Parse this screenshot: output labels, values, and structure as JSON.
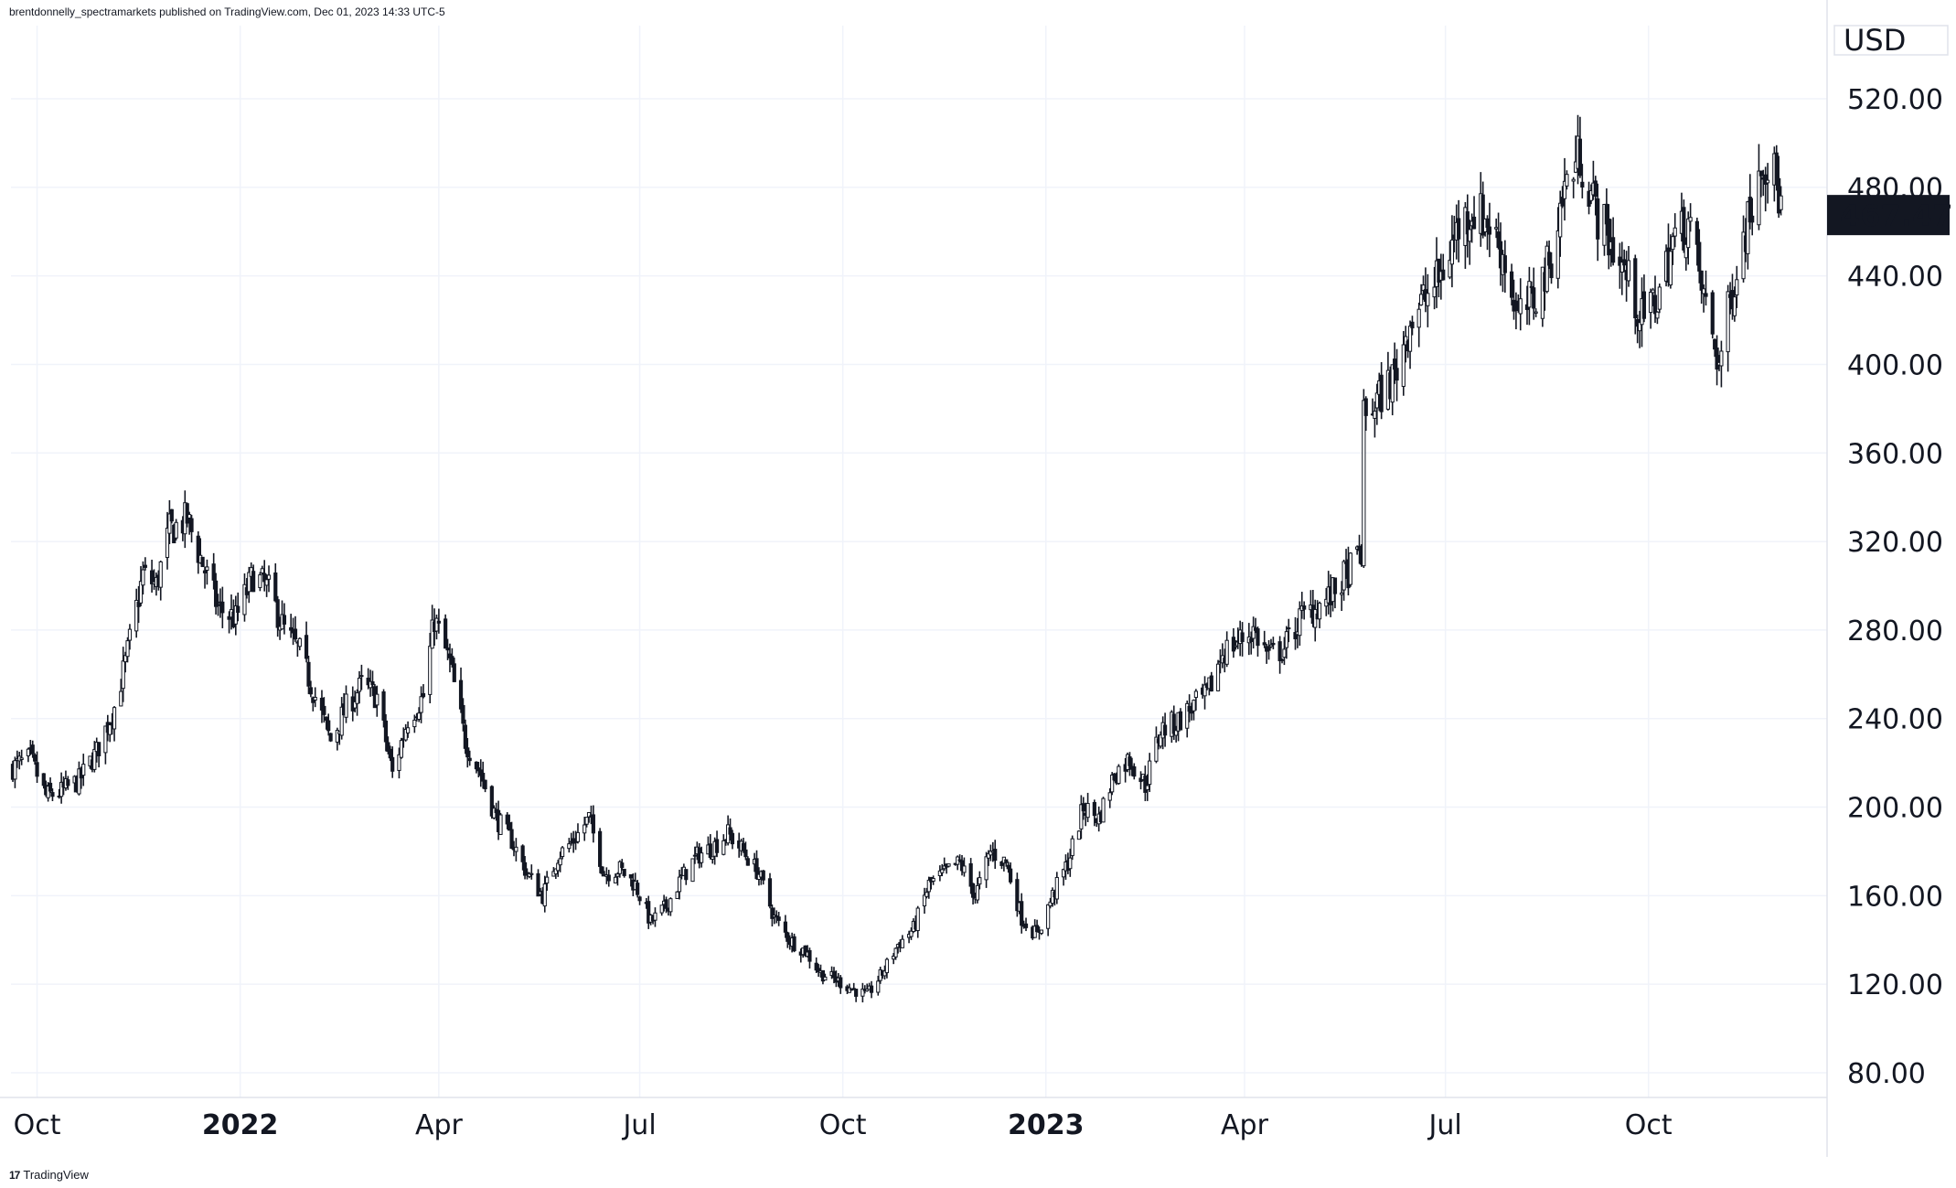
{
  "header": {
    "publisher_line": "brentdonnelly_spectramarkets published on TradingView.com, Dec 01, 2023 14:33 UTC-5"
  },
  "footer": {
    "logo_text": "17",
    "brand": "TradingView"
  },
  "colors": {
    "candle": "#131722",
    "grid": "#f0f3fa",
    "axis_border": "#e0e3eb",
    "last_price_bg": "#131722",
    "last_price_text": "#ffffff"
  },
  "chart_data": {
    "type": "line",
    "currency_label": "USD",
    "last_price": "467.47",
    "ylim": [
      70,
      540
    ],
    "y_ticks": [
      "80.00",
      "120.00",
      "160.00",
      "200.00",
      "240.00",
      "280.00",
      "320.00",
      "360.00",
      "400.00",
      "440.00",
      "480.00",
      "520.00"
    ],
    "x_ticks": [
      {
        "label": "Oct",
        "date": "2021-10-01",
        "bold": false
      },
      {
        "label": "2022",
        "date": "2022-01-01",
        "bold": true
      },
      {
        "label": "Apr",
        "date": "2022-04-01",
        "bold": false
      },
      {
        "label": "Jul",
        "date": "2022-07-01",
        "bold": false
      },
      {
        "label": "Oct",
        "date": "2022-10-01",
        "bold": false
      },
      {
        "label": "2023",
        "date": "2023-01-01",
        "bold": true
      },
      {
        "label": "Apr",
        "date": "2023-04-01",
        "bold": false
      },
      {
        "label": "Jul",
        "date": "2023-07-01",
        "bold": false
      },
      {
        "label": "Oct",
        "date": "2023-10-01",
        "bold": false
      }
    ],
    "x_range": [
      "2021-09-20",
      "2023-12-01"
    ],
    "series": [
      {
        "x": [
          "2021-09-20",
          "2021-09-28",
          "2021-10-05",
          "2021-10-12",
          "2021-10-20",
          "2021-10-28",
          "2021-11-05",
          "2021-11-10",
          "2021-11-18",
          "2021-11-24",
          "2021-11-30",
          "2021-12-08",
          "2021-12-15",
          "2021-12-22",
          "2021-12-30",
          "2022-01-07",
          "2022-01-14",
          "2022-01-21",
          "2022-01-28",
          "2022-02-04",
          "2022-02-11",
          "2022-02-18",
          "2022-02-25",
          "2022-03-04",
          "2022-03-11",
          "2022-03-18",
          "2022-03-25",
          "2022-03-30",
          "2022-04-06",
          "2022-04-13",
          "2022-04-20",
          "2022-04-27",
          "2022-05-04",
          "2022-05-11",
          "2022-05-18",
          "2022-05-25",
          "2022-06-01",
          "2022-06-08",
          "2022-06-15",
          "2022-06-22",
          "2022-06-29",
          "2022-07-06",
          "2022-07-13",
          "2022-07-20",
          "2022-07-27",
          "2022-08-03",
          "2022-08-10",
          "2022-08-17",
          "2022-08-24",
          "2022-08-31",
          "2022-09-07",
          "2022-09-14",
          "2022-09-21",
          "2022-09-28",
          "2022-10-05",
          "2022-10-12",
          "2022-10-19",
          "2022-10-26",
          "2022-11-02",
          "2022-11-09",
          "2022-11-16",
          "2022-11-23",
          "2022-11-30",
          "2022-12-07",
          "2022-12-14",
          "2022-12-21",
          "2022-12-28",
          "2023-01-04",
          "2023-01-11",
          "2023-01-18",
          "2023-01-25",
          "2023-02-01",
          "2023-02-08",
          "2023-02-15",
          "2023-02-22",
          "2023-03-01",
          "2023-03-08",
          "2023-03-15",
          "2023-03-22",
          "2023-03-29",
          "2023-04-05",
          "2023-04-12",
          "2023-04-19",
          "2023-04-26",
          "2023-05-03",
          "2023-05-10",
          "2023-05-17",
          "2023-05-24",
          "2023-05-25",
          "2023-06-01",
          "2023-06-08",
          "2023-06-15",
          "2023-06-22",
          "2023-06-29",
          "2023-07-06",
          "2023-07-13",
          "2023-07-20",
          "2023-07-27",
          "2023-08-03",
          "2023-08-10",
          "2023-08-17",
          "2023-08-24",
          "2023-08-31",
          "2023-09-07",
          "2023-09-14",
          "2023-09-21",
          "2023-09-28",
          "2023-10-05",
          "2023-10-12",
          "2023-10-19",
          "2023-10-26",
          "2023-11-02",
          "2023-11-09",
          "2023-11-16",
          "2023-11-21",
          "2023-11-27",
          "2023-12-01"
        ],
        "values": [
          218,
          222,
          205,
          207,
          212,
          225,
          245,
          265,
          305,
          300,
          325,
          330,
          310,
          290,
          285,
          305,
          298,
          280,
          270,
          250,
          230,
          245,
          255,
          250,
          215,
          240,
          250,
          285,
          265,
          230,
          215,
          195,
          185,
          170,
          160,
          178,
          185,
          195,
          170,
          172,
          165,
          148,
          155,
          168,
          178,
          182,
          188,
          180,
          170,
          150,
          140,
          135,
          125,
          122,
          118,
          115,
          125,
          138,
          145,
          165,
          170,
          175,
          160,
          180,
          175,
          150,
          142,
          160,
          175,
          200,
          195,
          215,
          222,
          210,
          235,
          238,
          245,
          250,
          270,
          275,
          280,
          268,
          272,
          285,
          290,
          295,
          305,
          315,
          375,
          385,
          395,
          420,
          430,
          440,
          460,
          470,
          465,
          450,
          420,
          430,
          445,
          480,
          495,
          470,
          455,
          440,
          420,
          430,
          455,
          465,
          430,
          400,
          440,
          470,
          495,
          485,
          467.47
        ]
      }
    ]
  }
}
